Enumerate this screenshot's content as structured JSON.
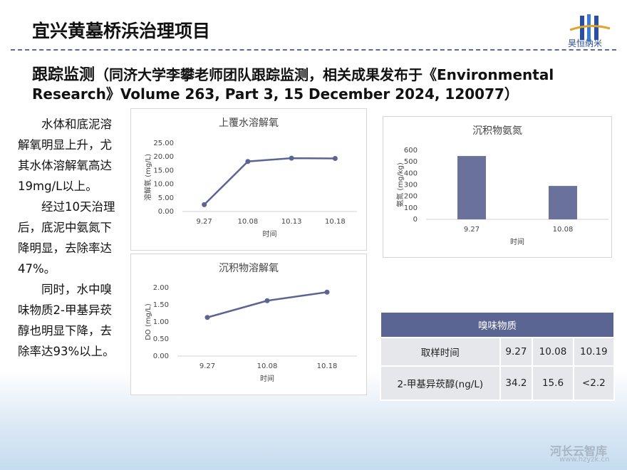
{
  "header": {
    "title": "宜兴黄墓桥浜治理项目",
    "logo": "昊恒纳米"
  },
  "heading": {
    "main": "跟踪监测",
    "note": "（同济大学李攀老师团队跟踪监测，相关成果发布于《Environmental Research》Volume 263, Part 3, 15 December 2024, 120077）"
  },
  "body": [
    "水体和底泥溶解氧明显上升，尤其水体溶解氧高达19mg/L以上。",
    "经过10天治理后，底泥中氨氮下降明显，去除率达47%。",
    "同时，水中嗅味物质2-甲基异莰醇也明显下降，去除率达93%以上。"
  ],
  "chart_data": [
    {
      "type": "line",
      "title": "上覆水溶解氧",
      "x_label": "时间",
      "y_label": "溶解氧 (mg/L)",
      "color": "#5b6594",
      "categories": [
        "9.27",
        "10.08",
        "10.13",
        "10.18"
      ],
      "values": [
        2.5,
        18.3,
        19.5,
        19.4
      ],
      "ylim": [
        0,
        25
      ],
      "yticks": [
        {
          "value": 0,
          "label": "0.00"
        },
        {
          "value": 5,
          "label": "5.00"
        },
        {
          "value": 10,
          "label": "10.00"
        },
        {
          "value": 15,
          "label": "15.00"
        },
        {
          "value": 20,
          "label": "20.00"
        },
        {
          "value": 25,
          "label": "25.00"
        }
      ]
    },
    {
      "type": "line",
      "title": "沉积物溶解氧",
      "x_label": "时间",
      "y_label": "DO (mg/L)",
      "color": "#5b6594",
      "categories": [
        "9.27",
        "10.08",
        "10.18"
      ],
      "values": [
        1.13,
        1.62,
        1.87
      ],
      "ylim": [
        0,
        2
      ],
      "yticks": [
        {
          "value": 0,
          "label": "0.00"
        },
        {
          "value": 0.5,
          "label": "0.50"
        },
        {
          "value": 1,
          "label": "1.00"
        },
        {
          "value": 1.5,
          "label": "1.50"
        },
        {
          "value": 2,
          "label": "2.00"
        }
      ]
    },
    {
      "type": "bar",
      "title": "沉积物氨氮",
      "x_label": "时间",
      "y_label": "氨氮 (mg/kg)",
      "color": "#6a719a",
      "categories": [
        "9.27",
        "10.08"
      ],
      "values": [
        550,
        290
      ],
      "ylim": [
        0,
        600
      ],
      "yticks": [
        0,
        100,
        200,
        300,
        400,
        500,
        600
      ]
    }
  ],
  "table": {
    "title": "嗅味物质",
    "rows": [
      [
        "取样时间",
        "9.27",
        "10.08",
        "10.19"
      ],
      [
        "2-甲基异莰醇(ng/L)",
        "34.2",
        "15.6",
        "<2.2"
      ]
    ]
  },
  "watermark": {
    "name": "河长云智库",
    "url": "www.hzyzk.cn"
  }
}
